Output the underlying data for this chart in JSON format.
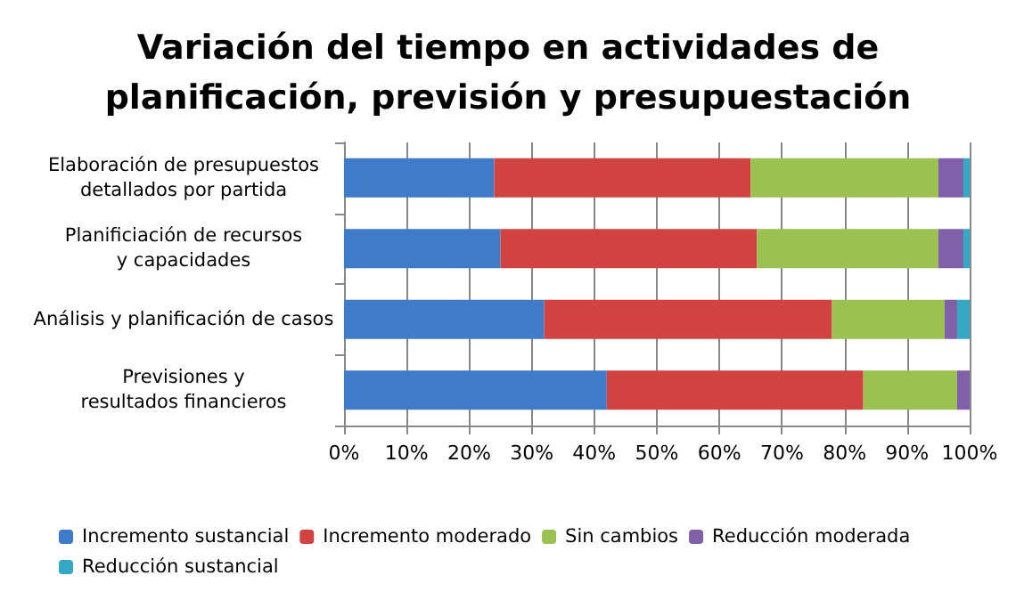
{
  "chart_data": {
    "type": "bar",
    "orientation": "horizontal",
    "stacked": true,
    "title": "Variación del tiempo en actividades de\nplanificación, previsión y presupuestación",
    "categories": [
      "Elaboración de presupuestos\ndetallados por partida",
      "Planificiación de recursos\ny capacidades",
      "Análisis y planificación de casos",
      "Previsiones y\nresultados financieros"
    ],
    "series": [
      {
        "name": "Incremento sustancial",
        "color": "#3f7bc9",
        "values": [
          24,
          25,
          32,
          42
        ]
      },
      {
        "name": "Incremento moderado",
        "color": "#d04340",
        "values": [
          41,
          41,
          46,
          41
        ]
      },
      {
        "name": "Sin cambios",
        "color": "#9bc150",
        "values": [
          30,
          29,
          18,
          15
        ]
      },
      {
        "name": "Reducción moderada",
        "color": "#8060a8",
        "values": [
          4,
          4,
          2,
          2
        ]
      },
      {
        "name": "Reducción sustancial",
        "color": "#35a8c6",
        "values": [
          1,
          1,
          2,
          0
        ]
      }
    ],
    "xlim": [
      0,
      100
    ],
    "xticks": [
      {
        "value": 0,
        "label": "0%"
      },
      {
        "value": 10,
        "label": "10%"
      },
      {
        "value": 20,
        "label": "20%"
      },
      {
        "value": 30,
        "label": "30%"
      },
      {
        "value": 40,
        "label": "40%"
      },
      {
        "value": 50,
        "label": "50%"
      },
      {
        "value": 60,
        "label": "60%"
      },
      {
        "value": 70,
        "label": "70%"
      },
      {
        "value": 80,
        "label": "80%"
      },
      {
        "value": 90,
        "label": "90%"
      },
      {
        "value": 100,
        "label": "100%"
      }
    ],
    "grid": "x",
    "legend": "bottom"
  }
}
